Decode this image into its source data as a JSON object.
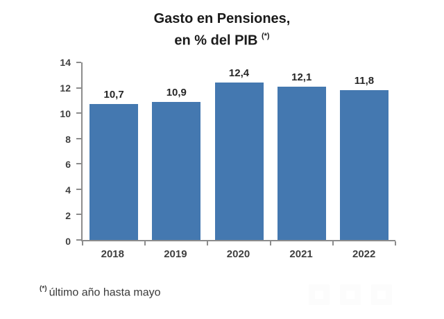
{
  "title": {
    "line1": "Gasto en Pensiones,",
    "line2": "en % del PIB",
    "superscript": "(*)"
  },
  "footnote": {
    "marker": "(*)",
    "text": "último año hasta mayo"
  },
  "chart_data": {
    "type": "bar",
    "title": "Gasto en Pensiones, en % del PIB (*)",
    "categories": [
      "2018",
      "2019",
      "2020",
      "2021",
      "2022"
    ],
    "values": [
      10.7,
      10.9,
      12.4,
      12.1,
      11.8
    ],
    "value_labels": [
      "10,7",
      "10,9",
      "12,4",
      "12,1",
      "11,8"
    ],
    "xlabel": "",
    "ylabel": "",
    "ylim": [
      0,
      14
    ],
    "ytick_step": 2,
    "grid": false,
    "legend_position": "none",
    "bar_color": "#4478B0",
    "axis_color": "#8C8C8C",
    "footnote": "(*) último año hasta mayo"
  }
}
